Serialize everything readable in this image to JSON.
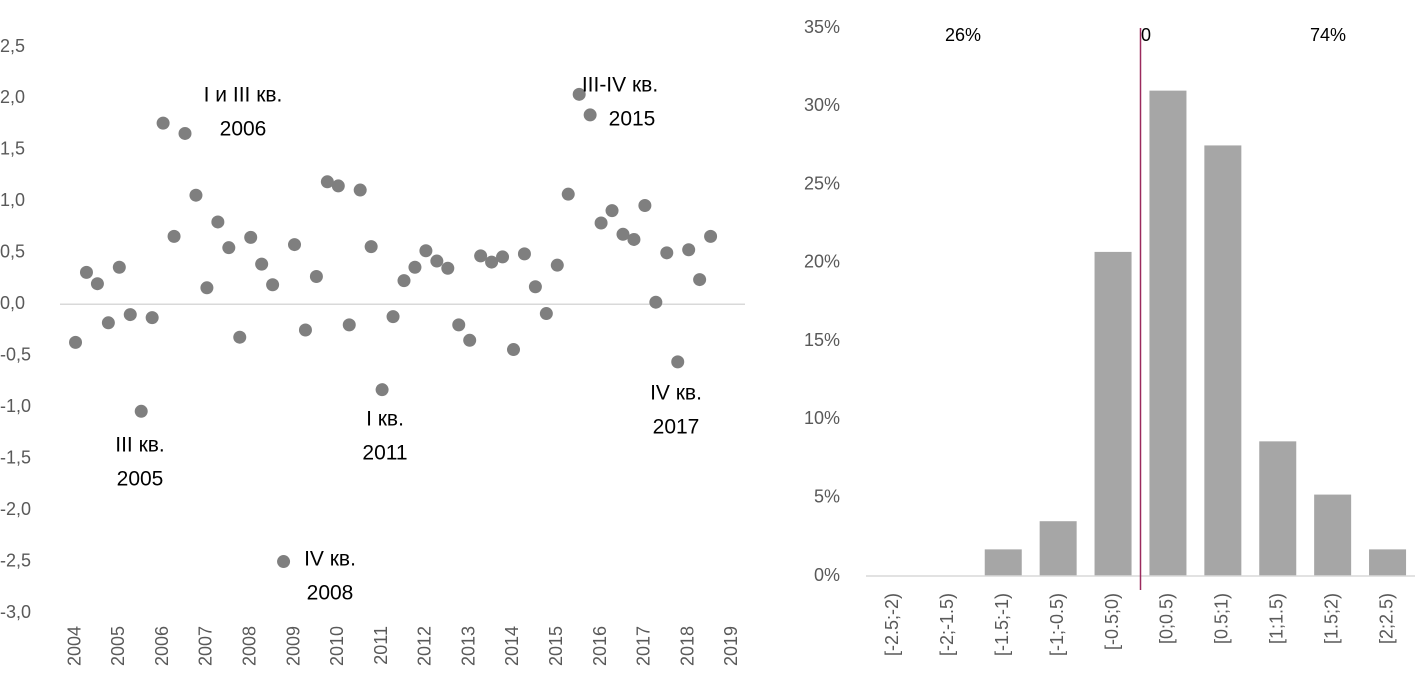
{
  "chart_data": [
    {
      "type": "scatter",
      "color": "#7f7f7f",
      "x": [
        2004,
        2004.25,
        2004.5,
        2004.75,
        2005,
        2005.25,
        2005.5,
        2005.75,
        2006,
        2006.25,
        2006.5,
        2006.75,
        2007,
        2007.25,
        2007.5,
        2007.75,
        2008,
        2008.25,
        2008.5,
        2008.75,
        2009,
        2009.25,
        2009.5,
        2009.75,
        2010,
        2010.25,
        2010.5,
        2010.75,
        2011,
        2011.25,
        2011.5,
        2011.75,
        2012,
        2012.25,
        2012.5,
        2012.75,
        2013,
        2013.25,
        2013.5,
        2013.75,
        2014,
        2014.25,
        2014.5,
        2014.75,
        2015,
        2015.25,
        2015.5,
        2015.75,
        2016,
        2016.25,
        2016.5,
        2016.75,
        2017,
        2017.25,
        2017.5,
        2017.75,
        2018,
        2018.25,
        2018.5
      ],
      "values": [
        -0.37,
        0.31,
        0.2,
        -0.18,
        0.36,
        -0.1,
        -1.04,
        -0.13,
        1.76,
        0.66,
        1.66,
        1.06,
        0.16,
        0.8,
        0.55,
        -0.32,
        0.65,
        0.39,
        0.19,
        -2.5,
        0.58,
        -0.25,
        0.27,
        1.19,
        1.15,
        -0.2,
        1.11,
        0.56,
        -0.83,
        -0.12,
        0.23,
        0.36,
        0.52,
        0.42,
        0.35,
        -0.2,
        -0.35,
        0.47,
        0.41,
        0.46,
        -0.44,
        0.49,
        0.17,
        -0.09,
        0.38,
        1.07,
        2.04,
        1.84,
        0.79,
        0.91,
        0.68,
        0.63,
        0.96,
        0.02,
        0.5,
        -0.56,
        0.53,
        0.24,
        0.66
      ],
      "xlim": [
        2003.6,
        2019.4
      ],
      "xticks": [
        2004,
        2005,
        2006,
        2007,
        2008,
        2009,
        2010,
        2011,
        2012,
        2013,
        2014,
        2015,
        2016,
        2017,
        2018,
        2019
      ],
      "ylim": [
        -3,
        2.5
      ],
      "yticks": [
        {
          "value": 2.5,
          "label": "2,5"
        },
        {
          "value": 2,
          "label": "2,0"
        },
        {
          "value": 1.5,
          "label": "1,5"
        },
        {
          "value": 1,
          "label": "1,0"
        },
        {
          "value": 0.5,
          "label": "0,5"
        },
        {
          "value": 0,
          "label": "0,0"
        },
        {
          "value": -0.5,
          "label": "-0,5"
        },
        {
          "value": -1,
          "label": "-1,0"
        },
        {
          "value": -1.5,
          "label": "-1,5"
        },
        {
          "value": -2,
          "label": "-2,0"
        },
        {
          "value": -2.5,
          "label": "-2,5"
        },
        {
          "value": -3,
          "label": "-3,0"
        }
      ],
      "annotations": [
        [
          "I и III кв.",
          "2006"
        ],
        [
          "III кв.",
          "2005"
        ],
        [
          "IV кв.",
          "2008"
        ],
        [
          "I кв.",
          "2011"
        ],
        [
          "III-IV кв.",
          "2015"
        ],
        [
          "IV кв.",
          "2017"
        ]
      ]
    },
    {
      "type": "bar",
      "color": "#a6a6a6",
      "categories": [
        "[-2.5;-2)",
        "[-2;-1.5)",
        "[-1.5;-1)",
        "[-1;-0.5)",
        "[-0.5;0)",
        "[0;0.5)",
        "[0.5;1)",
        "[1;1.5)",
        "[1.5;2)",
        "[2;2.5)"
      ],
      "values": [
        0,
        0,
        1.7,
        3.5,
        20.7,
        31,
        27.5,
        8.6,
        5.2,
        1.7
      ],
      "ylim": [
        0,
        35
      ],
      "yticks": [
        {
          "value": 0,
          "label": "0%"
        },
        {
          "value": 5,
          "label": "5%"
        },
        {
          "value": 10,
          "label": "10%"
        },
        {
          "value": 15,
          "label": "15%"
        },
        {
          "value": 20,
          "label": "20%"
        },
        {
          "value": 25,
          "label": "25%"
        },
        {
          "value": 30,
          "label": "30%"
        },
        {
          "value": 35,
          "label": "35%"
        }
      ],
      "annotations": [
        "26%",
        "0",
        "74%"
      ],
      "divider_color": "#9b2a5e"
    }
  ]
}
